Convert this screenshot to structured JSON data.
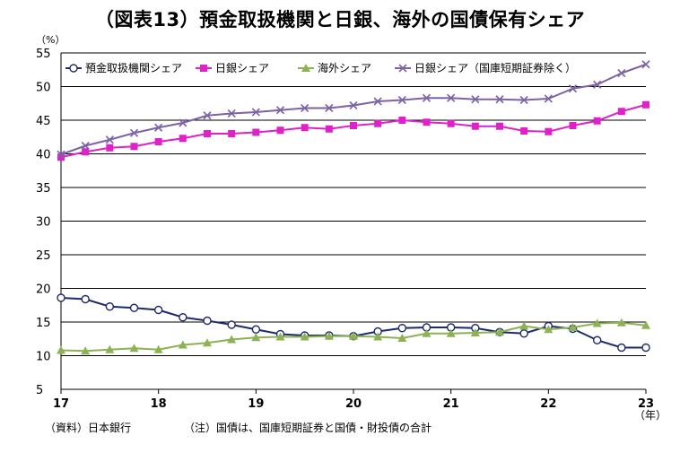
{
  "title": "（図表13）預金取扱機関と日銀、海外の国債保有シェア",
  "source_note": "（資料）日本銀行",
  "footnote": "（注）国債は、国庫短期証券と国債・財投債の合計",
  "chart_data": {
    "type": "line",
    "title": "（図表13）預金取扱機関と日銀、海外の国債保有シェア",
    "ylabel": "（%）",
    "xlabel": "（年）",
    "ylim": [
      5,
      55
    ],
    "yticks": [
      5,
      10,
      15,
      20,
      25,
      30,
      35,
      40,
      45,
      50,
      55
    ],
    "xlim": [
      0,
      24
    ],
    "xticks": [
      {
        "pos": 0,
        "label": "17"
      },
      {
        "pos": 4,
        "label": "18"
      },
      {
        "pos": 8,
        "label": "19"
      },
      {
        "pos": 12,
        "label": "20"
      },
      {
        "pos": 16,
        "label": "21"
      },
      {
        "pos": 20,
        "label": "22"
      },
      {
        "pos": 24,
        "label": "23"
      }
    ],
    "x": [
      0,
      1,
      2,
      3,
      4,
      5,
      6,
      7,
      8,
      9,
      10,
      11,
      12,
      13,
      14,
      15,
      16,
      17,
      18,
      19,
      20,
      21,
      22,
      23,
      24
    ],
    "grid": true,
    "legend_position": "top",
    "series": [
      {
        "name": "預金取扱機関シェア",
        "color": "#1f2a6b",
        "marker": "circle",
        "values": [
          18.6,
          18.4,
          17.3,
          17.1,
          16.8,
          15.7,
          15.2,
          14.6,
          13.9,
          13.2,
          13.0,
          13.0,
          12.9,
          13.6,
          14.1,
          14.2,
          14.2,
          14.1,
          13.5,
          13.3,
          14.4,
          14.0,
          12.3,
          11.2,
          11.2
        ]
      },
      {
        "name": "日銀シェア",
        "color": "#e020c8",
        "marker": "square",
        "values": [
          39.5,
          40.3,
          40.9,
          41.1,
          41.8,
          42.3,
          43.0,
          43.0,
          43.2,
          43.5,
          43.9,
          43.7,
          44.2,
          44.5,
          45.0,
          44.7,
          44.5,
          44.1,
          44.1,
          43.4,
          43.3,
          44.2,
          44.9,
          46.3,
          47.3
        ]
      },
      {
        "name": "海外シェア",
        "color": "#8db253",
        "marker": "triangle",
        "values": [
          10.8,
          10.7,
          10.9,
          11.1,
          10.9,
          11.6,
          11.9,
          12.4,
          12.7,
          12.8,
          12.8,
          12.9,
          12.9,
          12.8,
          12.6,
          13.3,
          13.3,
          13.4,
          13.5,
          14.4,
          13.9,
          14.2,
          14.8,
          14.9,
          14.5
        ]
      },
      {
        "name": "日銀シェア（国庫短期証券除く）",
        "color": "#7d63a5",
        "marker": "x",
        "values": [
          39.9,
          41.2,
          42.1,
          43.1,
          43.9,
          44.6,
          45.7,
          46.0,
          46.2,
          46.5,
          46.8,
          46.8,
          47.2,
          47.8,
          48.0,
          48.3,
          48.3,
          48.1,
          48.1,
          48.0,
          48.2,
          49.7,
          50.3,
          52.0,
          53.3
        ]
      }
    ]
  }
}
